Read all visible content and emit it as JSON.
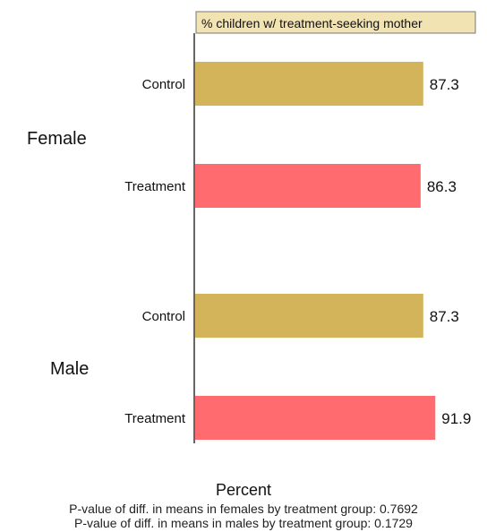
{
  "chart_data": {
    "type": "bar",
    "orientation": "horizontal",
    "panel_title": "% children w/ treatment-seeking mother",
    "xlabel": "Percent",
    "groups": [
      {
        "name": "Female",
        "bars": [
          {
            "category": "Control",
            "value": 87.3,
            "value_label": "87.3",
            "color": "#D4B45A"
          },
          {
            "category": "Treatment",
            "value": 86.3,
            "value_label": "86.3",
            "color": "#FF6B6E"
          }
        ]
      },
      {
        "name": "Male",
        "bars": [
          {
            "category": "Control",
            "value": 87.3,
            "value_label": "87.3",
            "color": "#D4B45A"
          },
          {
            "category": "Treatment",
            "value": 91.9,
            "value_label": "91.9",
            "color": "#FF6B6E"
          }
        ]
      }
    ],
    "notes": [
      "P-value of diff. in means in females by treatment group: 0.7692",
      "P-value of diff. in means in males by treatment group: 0.1729"
    ],
    "colors": {
      "control": "#D4B45A",
      "treatment": "#FF6B6E",
      "panel_title_bg": "#F2E3B3"
    },
    "xlim": [
      0,
      100
    ],
    "grid": false
  }
}
